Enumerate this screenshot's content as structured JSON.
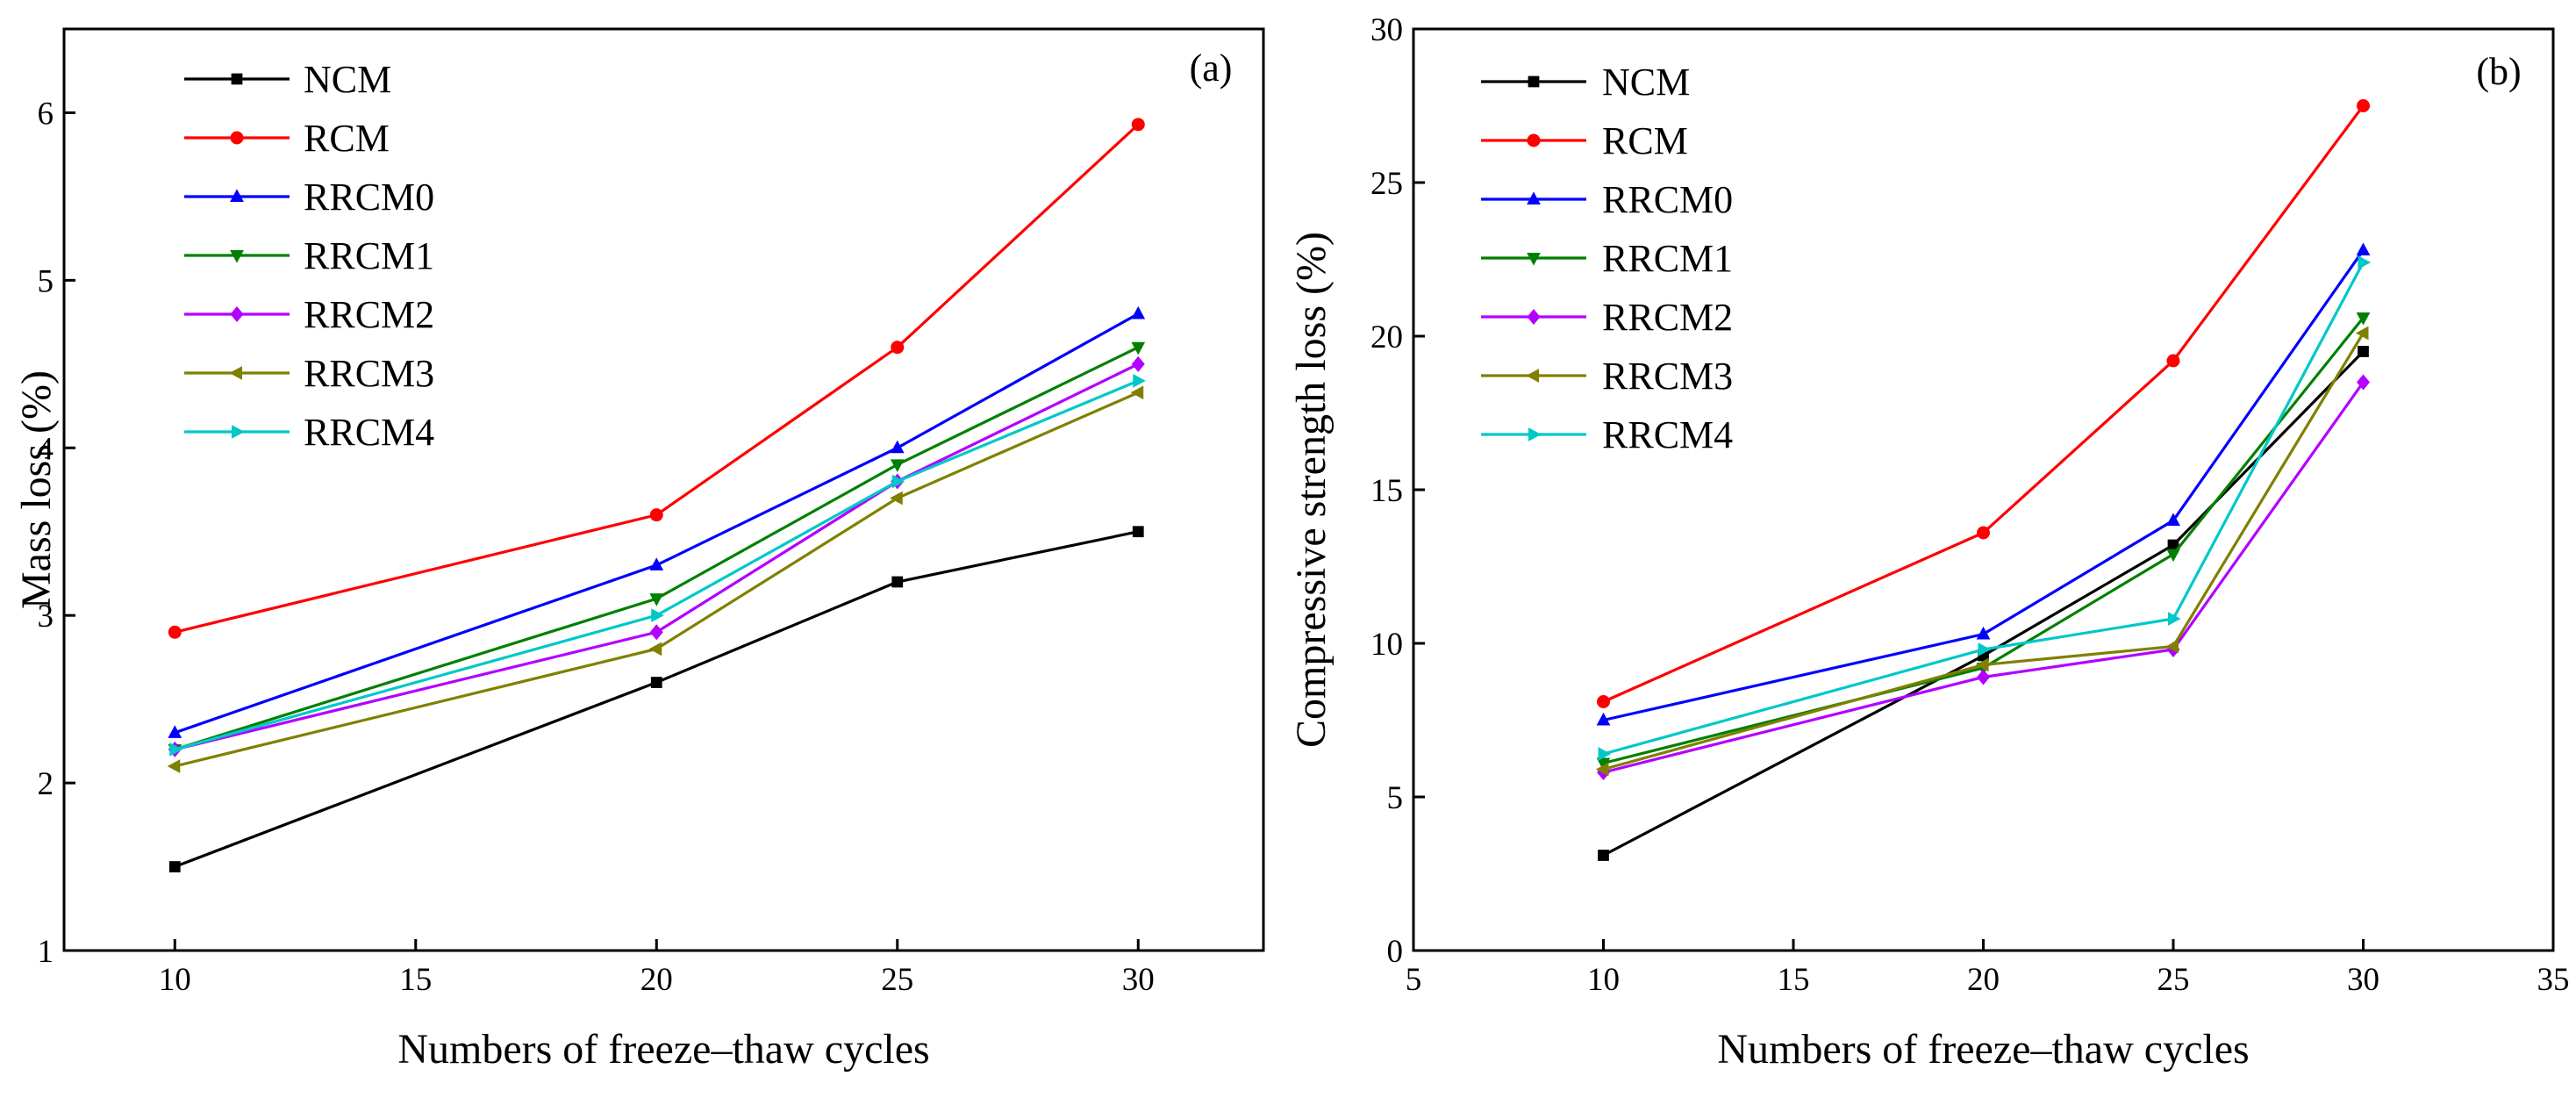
{
  "chart_data": [
    {
      "type": "line",
      "panel_label": "(a)",
      "title": "",
      "xlabel": "Numbers of freeze–thaw cycles",
      "ylabel": "Mass loss (%)",
      "xlim": [
        7.7,
        32.6
      ],
      "ylim": [
        1,
        6.5
      ],
      "xticks": [
        10,
        15,
        20,
        25,
        30
      ],
      "yticks": [
        1,
        2,
        3,
        4,
        5,
        6
      ],
      "x": [
        10,
        20,
        25,
        30
      ],
      "grid": false,
      "legend_position": "top-left",
      "series": [
        {
          "name": "NCM",
          "color": "#000000",
          "marker": "square",
          "values": [
            1.5,
            2.6,
            3.2,
            3.5
          ]
        },
        {
          "name": "RCM",
          "color": "#ff0000",
          "marker": "circle",
          "values": [
            2.9,
            3.6,
            4.6,
            5.93
          ]
        },
        {
          "name": "RRCM0",
          "color": "#0000ff",
          "marker": "triangle-up",
          "values": [
            2.3,
            3.3,
            4.0,
            4.8
          ]
        },
        {
          "name": "RRCM1",
          "color": "#008000",
          "marker": "triangle-down",
          "values": [
            2.2,
            3.1,
            3.9,
            4.6
          ]
        },
        {
          "name": "RRCM2",
          "color": "#b300ff",
          "marker": "diamond",
          "values": [
            2.2,
            2.9,
            3.8,
            4.5
          ]
        },
        {
          "name": "RRCM3",
          "color": "#808000",
          "marker": "triangle-left",
          "values": [
            2.1,
            2.8,
            3.7,
            4.33
          ]
        },
        {
          "name": "RRCM4",
          "color": "#00c8c8",
          "marker": "triangle-right",
          "values": [
            2.2,
            3.0,
            3.8,
            4.4
          ]
        }
      ]
    },
    {
      "type": "line",
      "panel_label": "(b)",
      "title": "",
      "xlabel": "Numbers of freeze–thaw cycles",
      "ylabel": "Compressive strength loss (%)",
      "xlim": [
        5,
        35
      ],
      "ylim": [
        0,
        30
      ],
      "xticks": [
        5,
        10,
        15,
        20,
        25,
        30,
        35
      ],
      "yticks": [
        0,
        5,
        10,
        15,
        20,
        25,
        30
      ],
      "x": [
        10,
        20,
        25,
        30
      ],
      "grid": false,
      "legend_position": "top-left",
      "series": [
        {
          "name": "NCM",
          "color": "#000000",
          "marker": "square",
          "values": [
            3.1,
            9.6,
            13.2,
            19.5
          ]
        },
        {
          "name": "RCM",
          "color": "#ff0000",
          "marker": "circle",
          "values": [
            8.1,
            13.6,
            19.2,
            27.5
          ]
        },
        {
          "name": "RRCM0",
          "color": "#0000ff",
          "marker": "triangle-up",
          "values": [
            7.5,
            10.3,
            14.0,
            22.8
          ]
        },
        {
          "name": "RRCM1",
          "color": "#008000",
          "marker": "triangle-down",
          "values": [
            6.1,
            9.2,
            12.9,
            20.6
          ]
        },
        {
          "name": "RRCM2",
          "color": "#b300ff",
          "marker": "diamond",
          "values": [
            5.8,
            8.9,
            9.8,
            18.5
          ]
        },
        {
          "name": "RRCM3",
          "color": "#808000",
          "marker": "triangle-left",
          "values": [
            5.9,
            9.3,
            9.9,
            20.1
          ]
        },
        {
          "name": "RRCM4",
          "color": "#00c8c8",
          "marker": "triangle-right",
          "values": [
            6.4,
            9.8,
            10.8,
            22.4
          ]
        }
      ]
    }
  ]
}
